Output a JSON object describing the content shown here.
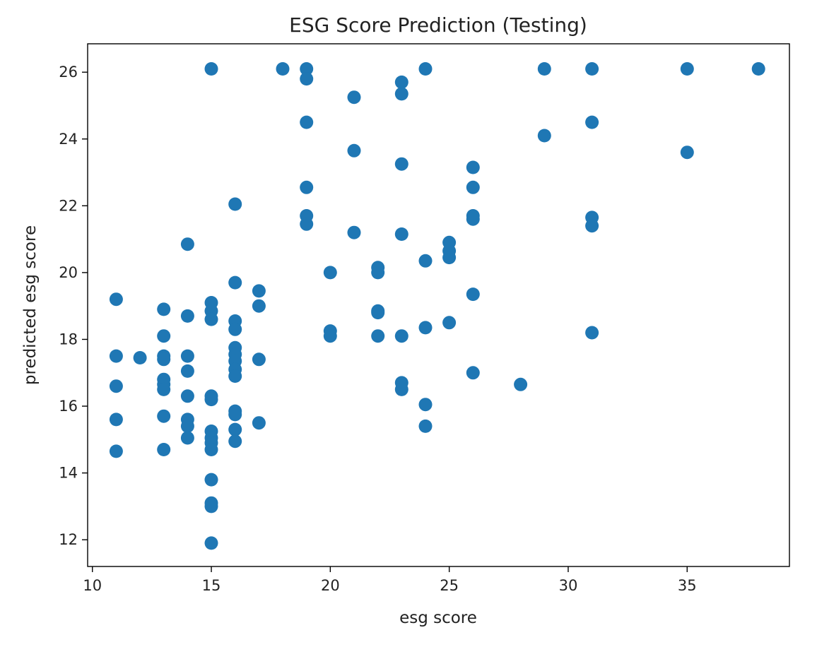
{
  "chart_data": {
    "type": "scatter",
    "title": "ESG Score Prediction (Testing)",
    "xlabel": "esg score",
    "ylabel": "predicted esg score",
    "xlim": [
      9.8,
      39.3
    ],
    "ylim": [
      11.2,
      26.85
    ],
    "xticks": [
      10,
      15,
      20,
      25,
      30,
      35
    ],
    "yticks": [
      12,
      14,
      16,
      18,
      20,
      22,
      24,
      26
    ],
    "xtick_labels": [
      "10",
      "15",
      "20",
      "25",
      "30",
      "35"
    ],
    "ytick_labels": [
      "12",
      "14",
      "16",
      "18",
      "20",
      "22",
      "24",
      "26"
    ],
    "grid": false,
    "marker_color": "#1f77b4",
    "points": [
      [
        11,
        19.2
      ],
      [
        11,
        17.5
      ],
      [
        11,
        16.6
      ],
      [
        11,
        15.6
      ],
      [
        11,
        14.65
      ],
      [
        12,
        17.45
      ],
      [
        13,
        18.9
      ],
      [
        13,
        18.1
      ],
      [
        13,
        17.5
      ],
      [
        13,
        17.4
      ],
      [
        13,
        16.8
      ],
      [
        13,
        16.65
      ],
      [
        13,
        16.5
      ],
      [
        13,
        15.7
      ],
      [
        13,
        14.7
      ],
      [
        14,
        20.85
      ],
      [
        14,
        18.7
      ],
      [
        14,
        17.5
      ],
      [
        14,
        17.05
      ],
      [
        14,
        16.3
      ],
      [
        14,
        15.6
      ],
      [
        14,
        15.4
      ],
      [
        14,
        15.05
      ],
      [
        15,
        26.1
      ],
      [
        15,
        19.1
      ],
      [
        15,
        18.85
      ],
      [
        15,
        18.6
      ],
      [
        15,
        16.3
      ],
      [
        15,
        16.2
      ],
      [
        15,
        15.25
      ],
      [
        15,
        15.05
      ],
      [
        15,
        14.9
      ],
      [
        15,
        14.7
      ],
      [
        15,
        13.8
      ],
      [
        15,
        13.1
      ],
      [
        15,
        13.0
      ],
      [
        15,
        11.9
      ],
      [
        16,
        22.05
      ],
      [
        16,
        19.7
      ],
      [
        16,
        18.55
      ],
      [
        16,
        18.3
      ],
      [
        16,
        17.75
      ],
      [
        16,
        17.55
      ],
      [
        16,
        17.35
      ],
      [
        16,
        17.1
      ],
      [
        16,
        16.9
      ],
      [
        16,
        15.85
      ],
      [
        16,
        15.75
      ],
      [
        16,
        15.3
      ],
      [
        16,
        14.95
      ],
      [
        17,
        19.45
      ],
      [
        17,
        19.0
      ],
      [
        17,
        17.4
      ],
      [
        17,
        15.5
      ],
      [
        18,
        26.1
      ],
      [
        19,
        26.1
      ],
      [
        19,
        25.8
      ],
      [
        19,
        24.5
      ],
      [
        19,
        22.55
      ],
      [
        19,
        21.7
      ],
      [
        19,
        21.45
      ],
      [
        20,
        20.0
      ],
      [
        20,
        18.25
      ],
      [
        20,
        18.1
      ],
      [
        21,
        25.25
      ],
      [
        21,
        23.65
      ],
      [
        21,
        21.2
      ],
      [
        22,
        20.15
      ],
      [
        22,
        20.0
      ],
      [
        22,
        18.85
      ],
      [
        22,
        18.8
      ],
      [
        22,
        18.1
      ],
      [
        23,
        25.7
      ],
      [
        23,
        25.35
      ],
      [
        23,
        23.25
      ],
      [
        23,
        21.15
      ],
      [
        23,
        18.1
      ],
      [
        23,
        16.7
      ],
      [
        23,
        16.5
      ],
      [
        24,
        26.1
      ],
      [
        24,
        20.35
      ],
      [
        24,
        18.35
      ],
      [
        24,
        16.05
      ],
      [
        24,
        15.4
      ],
      [
        25,
        20.9
      ],
      [
        25,
        20.65
      ],
      [
        25,
        20.45
      ],
      [
        25,
        18.5
      ],
      [
        26,
        23.15
      ],
      [
        26,
        22.55
      ],
      [
        26,
        21.7
      ],
      [
        26,
        21.6
      ],
      [
        26,
        19.35
      ],
      [
        26,
        17.0
      ],
      [
        28,
        16.65
      ],
      [
        29,
        26.1
      ],
      [
        29,
        24.1
      ],
      [
        31,
        26.1
      ],
      [
        31,
        24.5
      ],
      [
        31,
        21.65
      ],
      [
        31,
        21.4
      ],
      [
        31,
        18.2
      ],
      [
        35,
        26.1
      ],
      [
        35,
        23.6
      ],
      [
        38,
        26.1
      ]
    ]
  }
}
